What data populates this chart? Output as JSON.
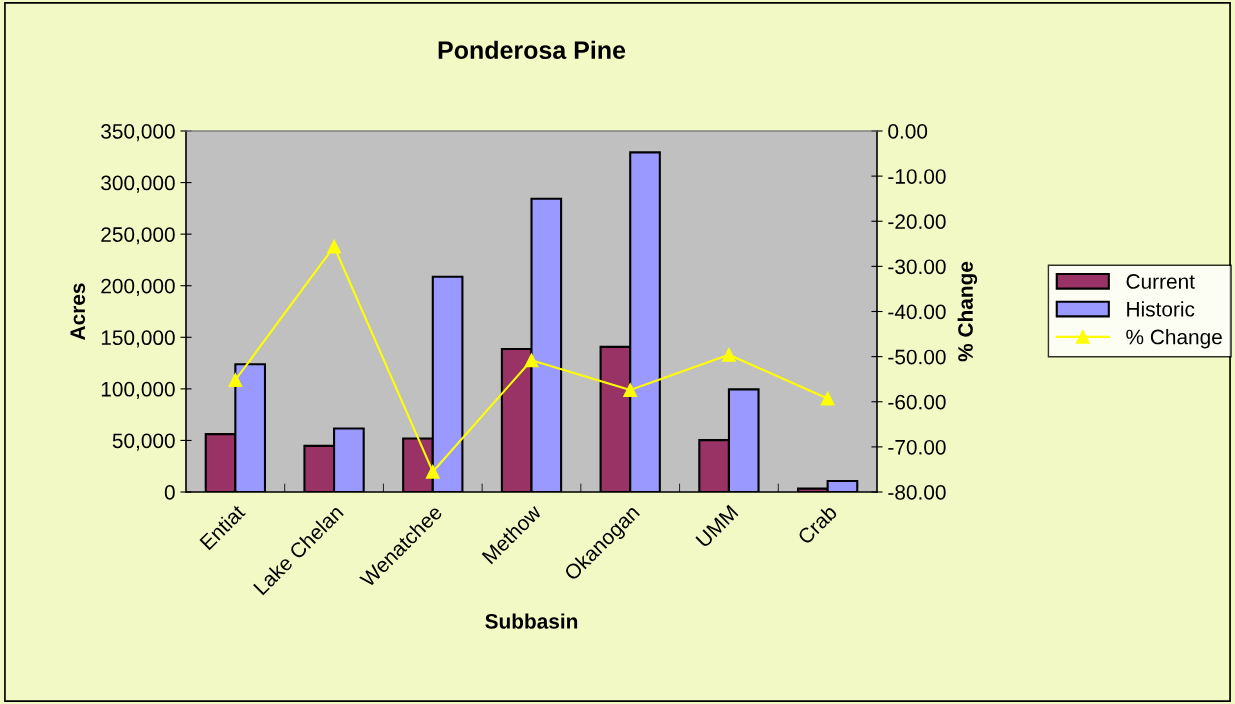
{
  "chart_data": {
    "type": "bar",
    "title": "Ponderosa Pine",
    "xlabel": "Subbasin",
    "ylabel": "Acres",
    "y2label": "% Change",
    "categories": [
      "Entiat",
      "Lake Chelan",
      "Wenatchee",
      "Methow",
      "Okanogan",
      "UMM",
      "Crab"
    ],
    "series": [
      {
        "name": "Current",
        "color": "#993366",
        "values": [
          56100,
          44700,
          51900,
          138700,
          140700,
          50300,
          3300
        ]
      },
      {
        "name": "Historic",
        "color": "#9999ff",
        "values": [
          123900,
          61600,
          208700,
          284300,
          329300,
          99500,
          10700
        ]
      },
      {
        "name": "% Change",
        "type": "line",
        "axis": "y2",
        "color": "#ffff00",
        "marker": "triangle",
        "values": [
          -55.2,
          -25.6,
          -75.5,
          -50.8,
          -57.4,
          -49.6,
          -59.3
        ]
      }
    ],
    "ylim": [
      0,
      350000
    ],
    "yticks": [
      {
        "value": 0,
        "label": "0"
      },
      {
        "value": 50000,
        "label": "50,000"
      },
      {
        "value": 100000,
        "label": "100,000"
      },
      {
        "value": 150000,
        "label": "150,000"
      },
      {
        "value": 200000,
        "label": "200,000"
      },
      {
        "value": 250000,
        "label": "250,000"
      },
      {
        "value": 300000,
        "label": "300,000"
      },
      {
        "value": 350000,
        "label": "350,000"
      }
    ],
    "y2lim": [
      -80,
      0
    ],
    "y2ticks": [
      {
        "value": -80,
        "label": "-80.00"
      },
      {
        "value": -70,
        "label": "-70.00"
      },
      {
        "value": -60,
        "label": "-60.00"
      },
      {
        "value": -50,
        "label": "-50.00"
      },
      {
        "value": -40,
        "label": "-40.00"
      },
      {
        "value": -30,
        "label": "-30.00"
      },
      {
        "value": -20,
        "label": "-20.00"
      },
      {
        "value": -10,
        "label": "-10.00"
      },
      {
        "value": 0,
        "label": "0.00"
      }
    ],
    "legend": "right",
    "grid": false
  }
}
